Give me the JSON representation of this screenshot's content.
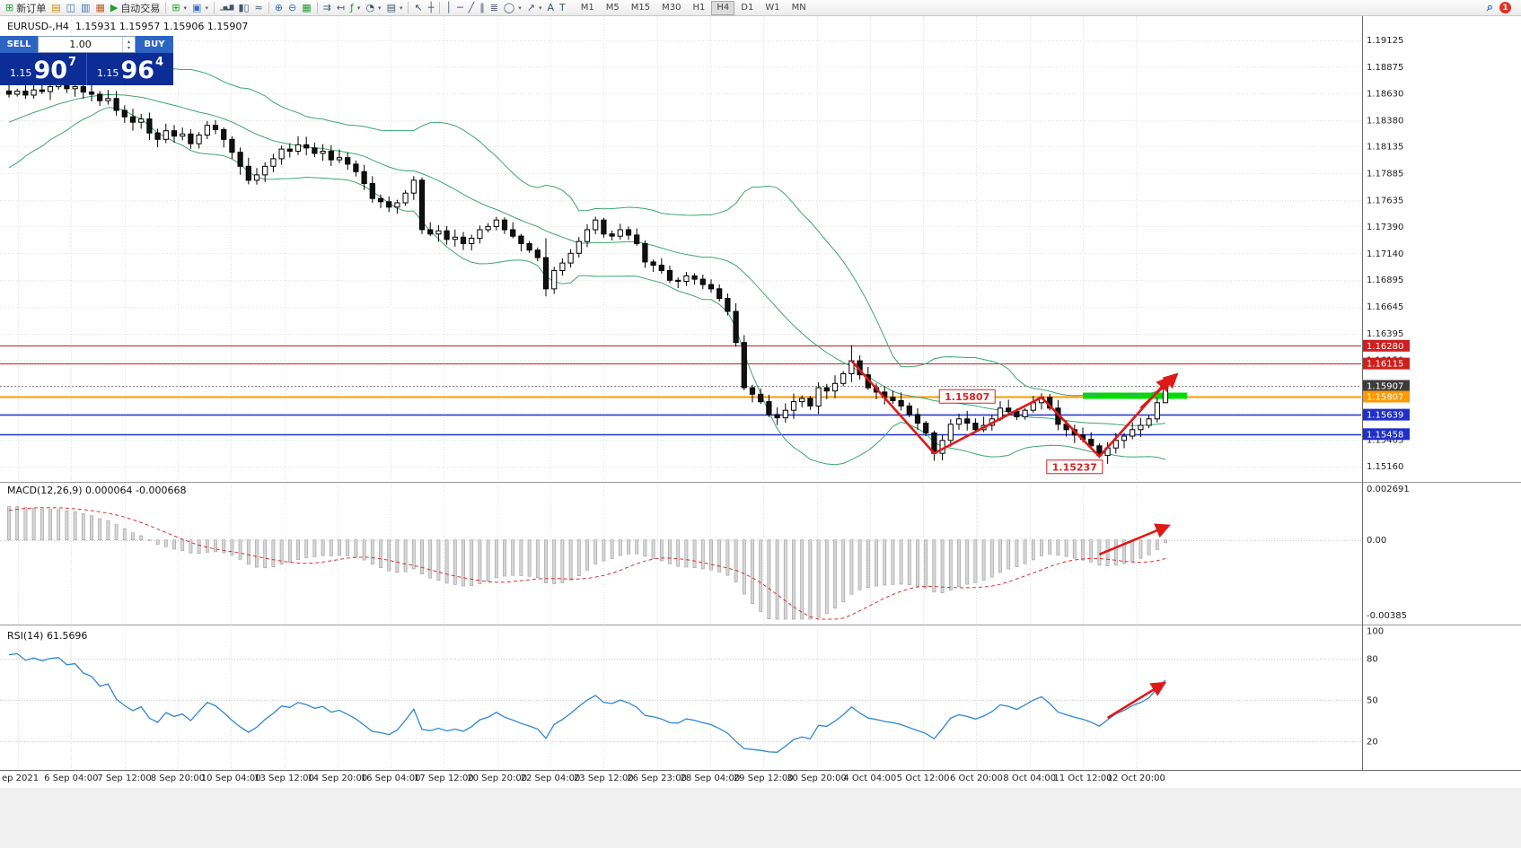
{
  "toolbar": {
    "items": [
      {
        "name": "new-order-button",
        "glyph": "⊞",
        "glyph_color": "#1f9d2f",
        "label": "新订单"
      },
      {
        "name": "chart-window-icon",
        "glyph": "▤",
        "glyph_color": "#c79100"
      },
      {
        "name": "market-watch-icon",
        "glyph": "◫",
        "glyph_color": "#3a6fbf"
      },
      {
        "name": "navigator-icon",
        "glyph": "▥",
        "glyph_color": "#3a6fbf"
      },
      {
        "name": "terminal-icon",
        "glyph": "▦",
        "glyph_color": "#b85c2a"
      },
      {
        "name": "auto-trading-button",
        "glyph": "▶",
        "glyph_color": "#1f9d2f",
        "label": "自动交易"
      },
      {
        "separator": true
      },
      {
        "name": "new-chart-button",
        "glyph": "⊞",
        "glyph_color": "#1f9d2f",
        "dropdown": true
      },
      {
        "name": "profiles-button",
        "glyph": "▣",
        "glyph_color": "#3a6fbf",
        "dropdown": true
      },
      {
        "separator": true
      },
      {
        "name": "bar-chart-button",
        "glyph": "▁▅▂▇",
        "tiny": true
      },
      {
        "name": "candlestick-chart-button",
        "glyph": "▮▯"
      },
      {
        "name": "line-chart-button",
        "glyph": "≈"
      },
      {
        "separator": true
      },
      {
        "name": "zoom-in-button",
        "glyph": "⊕",
        "glyph_color": "#3a6fbf"
      },
      {
        "name": "zoom-out-button",
        "glyph": "⊖",
        "glyph_color": "#3a6fbf"
      },
      {
        "name": "tile-windows-button",
        "glyph": "▦",
        "glyph_color": "#1f9d2f"
      },
      {
        "separator": true
      },
      {
        "name": "auto-scroll-button",
        "glyph": "⇉"
      },
      {
        "name": "chart-shift-button",
        "glyph": "↤"
      },
      {
        "name": "indicators-button",
        "glyph": "ƒ",
        "glyph_color": "#1f9d2f",
        "dropdown": true
      },
      {
        "name": "periods-button",
        "glyph": "◔",
        "dropdown": true
      },
      {
        "name": "templates-button",
        "glyph": "▤",
        "dropdown": true
      },
      {
        "separator": true
      },
      {
        "name": "cursor-button",
        "glyph": "↖"
      },
      {
        "name": "crosshair-button",
        "glyph": "┼"
      },
      {
        "separator": true
      },
      {
        "name": "vertical-line-button",
        "glyph": "│"
      },
      {
        "name": "horizontal-line-button",
        "glyph": "─"
      },
      {
        "name": "trendline-button",
        "glyph": "╱"
      },
      {
        "name": "channel-button",
        "glyph": "∥"
      },
      {
        "name": "fibonacci-button",
        "glyph": "≣"
      },
      {
        "name": "shapes-button",
        "glyph": "◯",
        "dropdown": true
      },
      {
        "name": "arrow-tools-button",
        "glyph": "↗",
        "dropdown": true
      },
      {
        "name": "text-button",
        "glyph": "A"
      },
      {
        "name": "text-label-button",
        "glyph": "T"
      }
    ],
    "timeframes": [
      "M1",
      "M5",
      "M15",
      "M30",
      "H1",
      "H4",
      "D1",
      "W1",
      "MN"
    ],
    "active_timeframe": "H4",
    "dropdown_glyph": "▾",
    "search_glyph": "⌕",
    "notification_count": "1"
  },
  "chart": {
    "info_line": "EURUSD-,H4  1.15931 1.15957 1.15906 1.15907",
    "symbol": "EURUSD-",
    "period": "H4",
    "ohlc": {
      "open": "1.15931",
      "high": "1.15957",
      "low": "1.15906",
      "close": "1.15907"
    }
  },
  "trade_panel": {
    "sell_label": "SELL",
    "buy_label": "BUY",
    "lot_value": "1.00",
    "sell_price": {
      "small": "1.15",
      "big": "90",
      "sup": "7"
    },
    "buy_price": {
      "small": "1.15",
      "big": "96",
      "sup": "4"
    }
  },
  "ui_glyphs": {
    "spin_up": "▴",
    "spin_down": "▾"
  },
  "colors": {
    "bollinger": "#3da56f",
    "rsi_line": "#2f86d6",
    "macd_signal": "#e03030",
    "annotation": "#e01818",
    "grid": "#e0e0e0",
    "level_grid": "#c8c8c8",
    "bull": "#ffffff",
    "bear": "#111111",
    "histogram_fill": "#d6d6d6",
    "histogram_stroke": "#9c9c9c"
  },
  "chart_data": {
    "type": "candlestick",
    "title": "EURUSD-,H4",
    "symbol": "EURUSD-",
    "timeframe": "H4",
    "ylim": [
      1.15013,
      1.19346
    ],
    "open0": 1.1865,
    "pre_closes": [
      1.1795,
      1.1802,
      1.18,
      1.1808,
      1.1815,
      1.1812,
      1.182,
      1.1826,
      1.1824,
      1.1832,
      1.1838,
      1.1836,
      1.1844,
      1.185,
      1.1848,
      1.1855,
      1.186,
      1.1858,
      1.1863,
      1.1865
    ],
    "closes": [
      1.1862,
      1.18648,
      1.18612,
      1.1866,
      1.18645,
      1.1869,
      1.1871,
      1.18672,
      1.1869,
      1.1864,
      1.1862,
      1.1856,
      1.1858,
      1.1847,
      1.1841,
      1.1836,
      1.1839,
      1.1826,
      1.182,
      1.1828,
      1.1823,
      1.1825,
      1.1816,
      1.1824,
      1.1833,
      1.1829,
      1.182,
      1.1808,
      1.1795,
      1.1782,
      1.1787,
      1.1795,
      1.1802,
      1.1811,
      1.1809,
      1.1815,
      1.1812,
      1.1807,
      1.1809,
      1.1801,
      1.1803,
      1.1797,
      1.179,
      1.1779,
      1.1765,
      1.1762,
      1.1757,
      1.1761,
      1.177,
      1.1782,
      1.1736,
      1.1732,
      1.1735,
      1.1727,
      1.1729,
      1.1723,
      1.1728,
      1.1736,
      1.1739,
      1.1745,
      1.1736,
      1.173,
      1.1723,
      1.1717,
      1.171,
      1.1681,
      1.1698,
      1.1705,
      1.1714,
      1.1725,
      1.1736,
      1.1745,
      1.1732,
      1.173,
      1.1736,
      1.1731,
      1.1723,
      1.1706,
      1.1703,
      1.1698,
      1.1689,
      1.1688,
      1.1693,
      1.169,
      1.1685,
      1.1681,
      1.1672,
      1.166,
      1.1631,
      1.1589,
      1.1583,
      1.1576,
      1.1564,
      1.1561,
      1.1568,
      1.1576,
      1.1579,
      1.1572,
      1.1589,
      1.1586,
      1.1593,
      1.1602,
      1.1614,
      1.1601,
      1.1589,
      1.1585,
      1.158,
      1.1577,
      1.1572,
      1.1564,
      1.1556,
      1.1547,
      1.1528,
      1.154,
      1.1555,
      1.156,
      1.1556,
      1.155,
      1.1554,
      1.156,
      1.157,
      1.1567,
      1.1562,
      1.1568,
      1.1575,
      1.158,
      1.157,
      1.1555,
      1.155,
      1.1545,
      1.1541,
      1.1535,
      1.1526,
      1.1533,
      1.154,
      1.1544,
      1.155,
      1.1554,
      1.156,
      1.1575,
      1.15907
    ],
    "wick_overrides": {
      "65": {
        "hi": 1.1728,
        "lo": 1.1674
      },
      "102": {
        "hi": 1.16285
      },
      "112": {
        "lo": 1.1521
      },
      "132": {
        "lo": 1.15237
      },
      "140": {
        "hi": 1.15957,
        "lo": 1.15906
      }
    },
    "bollinger": {
      "period": 20,
      "deviation": 2
    },
    "y_ticks": [
      1.19125,
      1.18875,
      1.1863,
      1.1838,
      1.18135,
      1.17885,
      1.17635,
      1.1739,
      1.1714,
      1.16895,
      1.16645,
      1.16395,
      1.1615,
      1.159,
      1.15655,
      1.15405,
      1.1516
    ],
    "x_labels": [
      "ep 2021",
      "6 Sep 04:00",
      "7 Sep 12:00",
      "8 Sep 20:00",
      "10 Sep 04:00",
      "13 Sep 12:00",
      "14 Sep 20:00",
      "16 Sep 04:00",
      "17 Sep 12:00",
      "20 Sep 20:00",
      "22 Sep 04:00",
      "23 Sep 12:00",
      "26 Sep 23:00",
      "28 Sep 04:00",
      "29 Sep 12:00",
      "30 Sep 20:00",
      "4 Oct 04:00",
      "5 Oct 12:00",
      "6 Oct 20:00",
      "8 Oct 04:00",
      "11 Oct 12:00",
      "12 Oct 20:00"
    ],
    "levels": [
      {
        "text": "1.16280",
        "price": 1.1628,
        "color": "#cc2020",
        "width": 1
      },
      {
        "text": "1.16115",
        "price": 1.16115,
        "color": "#cc2020",
        "width": 1
      },
      {
        "text": "1.15907",
        "price": 1.15907,
        "color": "#888888",
        "width": 1,
        "dash": "2,2"
      },
      {
        "text": "1.15807",
        "price": 1.15807,
        "color": "#ff9a00",
        "width": 2
      },
      {
        "text": "1.15639",
        "price": 1.15639,
        "color": "#2030c8",
        "width": 1.5
      },
      {
        "text": "1.15458",
        "price": 1.15458,
        "color": "#2030c8",
        "width": 1.5
      }
    ],
    "axis_badges": [
      {
        "text": "1.16280",
        "price": 1.1628,
        "bg": "#cc2020",
        "fg": "#ffffff"
      },
      {
        "text": "1.16115",
        "price": 1.16115,
        "bg": "#cc2020",
        "fg": "#ffffff"
      },
      {
        "text": "1.15907",
        "price": 1.15907,
        "bg": "#3c3c3c",
        "fg": "#ffffff"
      },
      {
        "text": "1.15807",
        "price": 1.15807,
        "bg": "#ff9a00",
        "fg": "#ffffff"
      },
      {
        "text": "1.15639",
        "price": 1.15639,
        "bg": "#2030c8",
        "fg": "#ffffff"
      },
      {
        "text": "1.15458",
        "price": 1.15458,
        "bg": "#2030c8",
        "fg": "#ffffff"
      }
    ],
    "indicators": {
      "macd": {
        "label": "MACD(12,26,9) 0.000064 -0.000668",
        "fast": 12,
        "slow": 26,
        "signal": 9,
        "value_main": 6.4e-05,
        "value_signal": -0.000668,
        "axis_max": 0.002691,
        "axis_min": -0.00385,
        "axis_labels": [
          "0.002691",
          "0.00",
          "-0.00385"
        ]
      },
      "rsi": {
        "label": "RSI(14) 61.5696",
        "period": 14,
        "value": 61.5696,
        "axis_labels": [
          "100",
          "80",
          "50",
          "20"
        ],
        "axis_values": [
          100,
          80,
          50,
          20
        ],
        "levels": [
          80,
          50,
          20
        ]
      }
    },
    "annotations": {
      "zigzag": [
        [
          102,
          1.1614
        ],
        [
          112,
          1.1528
        ],
        [
          125,
          1.158
        ],
        [
          132,
          1.1525
        ],
        [
          140.5,
          1.1598
        ]
      ],
      "price_arrow": [
        [
          137,
          1.157
        ],
        [
          141.3,
          1.1601
        ]
      ],
      "macd_arrow": [
        [
          132,
          -0.0007
        ],
        [
          140.3,
          0.00068
        ]
      ],
      "rsi_arrow": [
        [
          133,
          37
        ],
        [
          139.8,
          62
        ]
      ],
      "green_band": {
        "from_index": 130,
        "to_index": 142.6,
        "price": 1.15815,
        "color": "#00dc00"
      },
      "price_labels": [
        {
          "text": "1.15807",
          "index": 116,
          "price": 1.15805
        },
        {
          "text": "1.15237",
          "index": 129,
          "price": 1.1515
        }
      ]
    }
  }
}
